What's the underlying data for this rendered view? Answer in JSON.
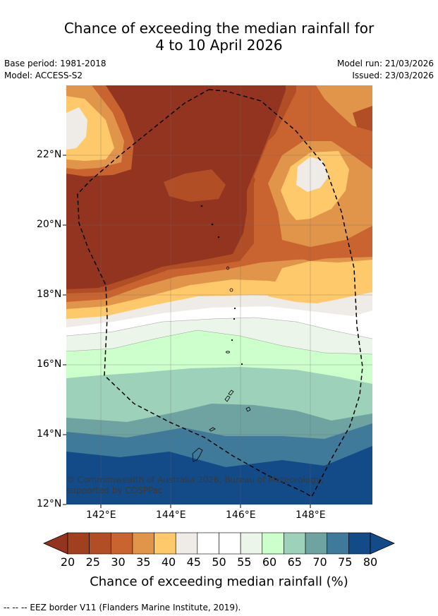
{
  "title": {
    "line1": "Chance of exceeding the median rainfall for",
    "line2": "4 to 10 April 2026"
  },
  "meta": {
    "base_period": "Base period: 1981-2018",
    "model": "Model: ACCESS-S2",
    "model_run": "Model run: 21/03/2026",
    "issued": "Issued: 23/03/2026"
  },
  "axes": {
    "lat_labels": [
      "22°N",
      "20°N",
      "18°N",
      "16°N",
      "14°N",
      "12°N"
    ],
    "lon_labels": [
      "142°E",
      "144°E",
      "146°E",
      "148°E"
    ]
  },
  "map_data": {
    "lon_range": [
      141.0,
      149.8
    ],
    "lat_range": [
      12.0,
      24.0
    ],
    "grid": true,
    "eez_border_style": "dashed"
  },
  "colorbar": {
    "ticks": [
      "20",
      "25",
      "30",
      "35",
      "40",
      "45",
      "50",
      "55",
      "60",
      "65",
      "70",
      "75",
      "80"
    ],
    "colors": [
      "#a0401f",
      "#b24e26",
      "#c96430",
      "#e0954b",
      "#fec96a",
      "#efebe6",
      "#ffffff",
      "#ffffff",
      "#ecf5ea",
      "#ccffcc",
      "#9ed1ba",
      "#6ea3a1",
      "#3f7a9a",
      "#134a88"
    ],
    "under_color": "#923420",
    "over_color": "#134a88",
    "label": "Chance of exceeding median rainfall (%)"
  },
  "copyright": "© Commonwealth of Australia 2026, Bureau of Meteorology, supported by COSPPac",
  "footnote": "--  --  -- EEZ border V11 (Flanders Marine Institute, 2019)."
}
